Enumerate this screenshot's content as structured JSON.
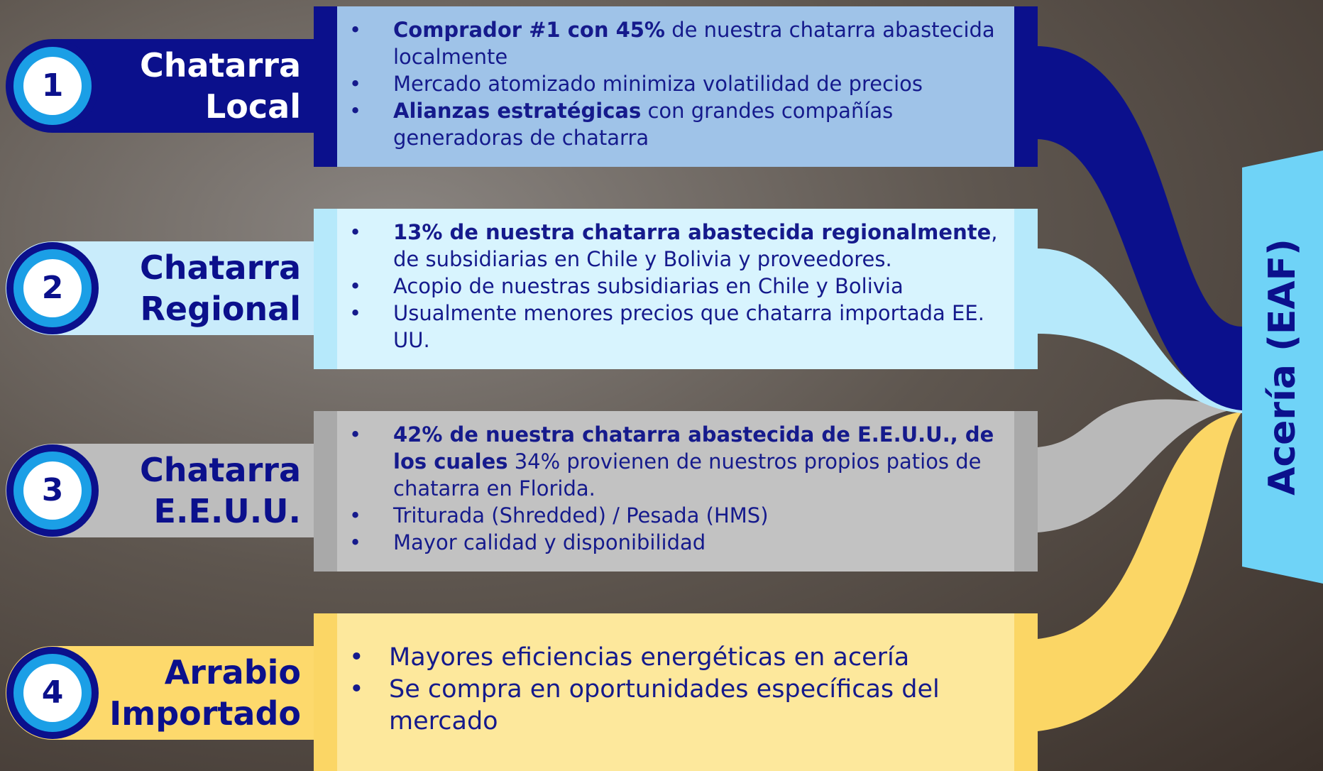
{
  "rows": [
    {
      "number": "1",
      "title": [
        "Chatarra",
        "Local"
      ],
      "bullets": [
        [
          {
            "text": "Comprador #1 con 45%",
            "bold": true
          },
          {
            "text": " de nuestra chatarra abastecida localmente",
            "bold": false
          }
        ],
        [
          {
            "text": "Mercado atomizado minimiza volatilidad de precios",
            "bold": false
          }
        ],
        [
          {
            "text": "Alianzas estratégicas",
            "bold": true
          },
          {
            "text": " con grandes compañías generadoras de chatarra",
            "bold": false
          }
        ]
      ]
    },
    {
      "number": "2",
      "title": [
        "Chatarra",
        "Regional"
      ],
      "bullets": [
        [
          {
            "text": "13% de nuestra chatarra abastecida regionalmente",
            "bold": true
          },
          {
            "text": ", de subsidiarias en Chile y Bolivia y proveedores.",
            "bold": false
          }
        ],
        [
          {
            "text": "Acopio de nuestras subsidiarias en Chile y Bolivia",
            "bold": false
          }
        ],
        [
          {
            "text": "Usualmente menores precios que chatarra importada EE. UU.",
            "bold": false
          }
        ]
      ]
    },
    {
      "number": "3",
      "title": [
        "Chatarra",
        "E.E.U.U."
      ],
      "bullets": [
        [
          {
            "text": "42% de nuestra chatarra abastecida de E.E.U.U., de los cuales",
            "bold": true
          },
          {
            "text": " 34% provienen de nuestros propios patios de chatarra en Florida.",
            "bold": false
          }
        ],
        [
          {
            "text": "Triturada (Shredded) / Pesada (HMS)",
            "bold": false
          }
        ],
        [
          {
            "text": "Mayor calidad y disponibilidad",
            "bold": false
          }
        ]
      ]
    },
    {
      "number": "4",
      "title": [
        "Arrabio",
        "Importado"
      ],
      "bullets": [
        [
          {
            "text": "Mayores eficiencias energéticas en acería",
            "bold": false
          }
        ],
        [
          {
            "text": "Se compra en oportunidades específicas del mercado",
            "bold": false
          }
        ]
      ]
    }
  ],
  "destination": "Acería (EAF)"
}
